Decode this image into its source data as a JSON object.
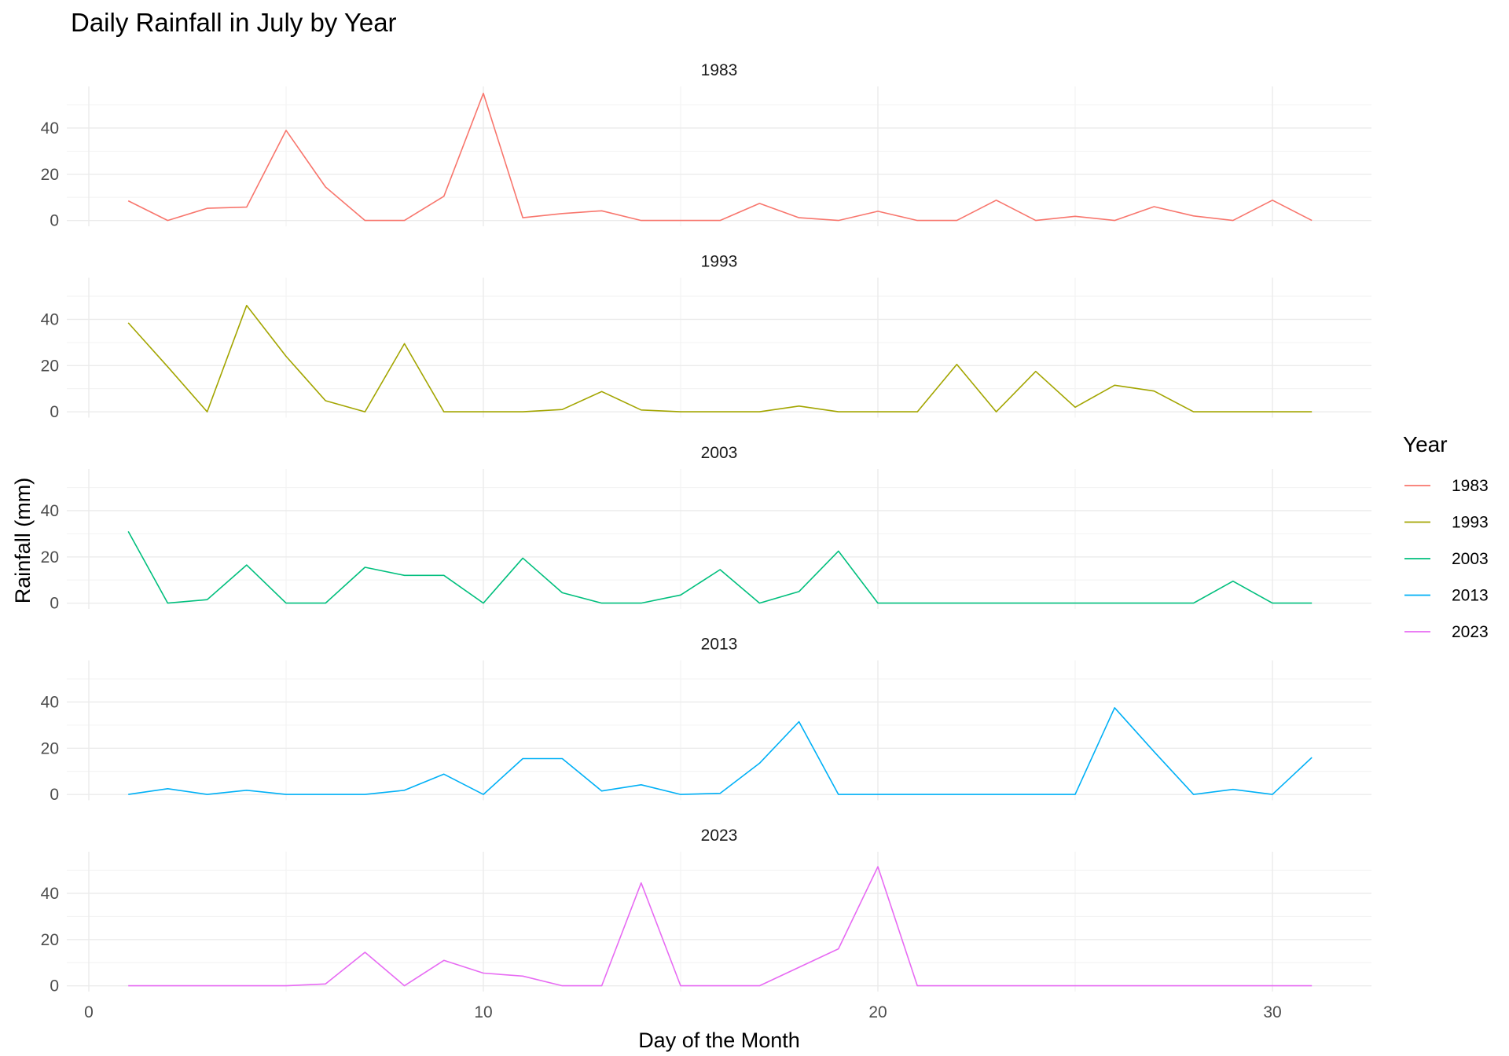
{
  "chart_data": {
    "type": "line",
    "title": "Daily Rainfall in July by Year",
    "xlabel": "Day of the Month",
    "ylabel": "Rainfall (mm)",
    "xlim": [
      0,
      32.5
    ],
    "ylim": [
      0,
      55
    ],
    "x_ticks": [
      0,
      10,
      20,
      30
    ],
    "y_ticks": [
      0,
      20,
      40
    ],
    "grid": true,
    "facets": "rows by year",
    "legend": {
      "title": "Year",
      "placement": "right"
    },
    "x": [
      1,
      2,
      3,
      4,
      5,
      6,
      7,
      8,
      9,
      10,
      11,
      12,
      13,
      14,
      15,
      16,
      17,
      18,
      19,
      20,
      21,
      22,
      23,
      24,
      25,
      26,
      27,
      28,
      29,
      30,
      31
    ],
    "series": [
      {
        "name": "1983",
        "color": "#F8766D",
        "values": [
          8.5,
          0,
          5.3,
          5.8,
          39,
          14.5,
          0,
          0,
          10.5,
          55,
          1.2,
          3,
          4.2,
          0,
          0,
          0,
          7.4,
          1.2,
          0,
          4,
          0,
          0,
          8.8,
          0,
          1.8,
          0,
          6,
          2,
          0,
          8.8,
          0
        ]
      },
      {
        "name": "1993",
        "color": "#A3A500",
        "values": [
          38.5,
          19.5,
          0,
          46,
          24,
          4.8,
          0,
          29.5,
          0,
          0,
          0,
          1,
          8.8,
          0.8,
          0,
          0,
          0,
          2.5,
          0,
          0,
          0,
          20.5,
          0,
          17.5,
          2,
          11.5,
          9,
          0,
          0,
          0,
          0
        ]
      },
      {
        "name": "2003",
        "color": "#00BF7D",
        "values": [
          31,
          0,
          1.5,
          16.5,
          0,
          0,
          15.5,
          12,
          12,
          0,
          19.5,
          4.5,
          0,
          0,
          3.5,
          14.5,
          0,
          5,
          22.5,
          0,
          0,
          0,
          0,
          0,
          0,
          0,
          0,
          0,
          9.5,
          0,
          0
        ]
      },
      {
        "name": "2013",
        "color": "#00B0F6",
        "values": [
          0,
          2.5,
          0,
          1.8,
          0,
          0,
          0,
          1.8,
          8.8,
          0,
          15.5,
          15.5,
          1.5,
          4.2,
          0,
          0.5,
          13.5,
          31.5,
          0,
          0,
          0,
          0,
          0,
          0,
          0,
          37.5,
          18.5,
          0,
          2.2,
          0,
          16
        ]
      },
      {
        "name": "2023",
        "color": "#E76BF3",
        "values": [
          0,
          0,
          0,
          0,
          0,
          0.8,
          14.5,
          0,
          11,
          5.5,
          4.2,
          0,
          0,
          44.5,
          0,
          0,
          0,
          8,
          16,
          51.5,
          0,
          0,
          0,
          0,
          0,
          0,
          0,
          0,
          0,
          0,
          0
        ]
      }
    ]
  }
}
